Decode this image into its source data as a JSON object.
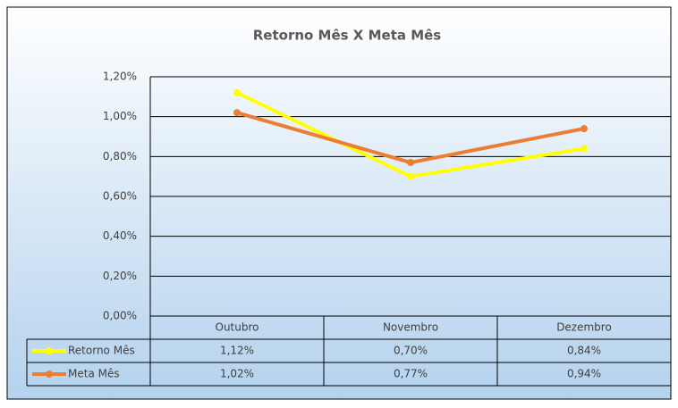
{
  "chart_data": {
    "type": "line",
    "title": "Retorno Mês X Meta Mês",
    "categories": [
      "Outubro",
      "Novembro",
      "Dezembro"
    ],
    "series": [
      {
        "name": "Retorno Mês",
        "color": "#ffff00",
        "values": [
          1.12,
          0.7,
          0.84
        ],
        "value_labels": [
          "1,12%",
          "0,70%",
          "0,84%"
        ]
      },
      {
        "name": "Meta Mês",
        "color": "#ed7d31",
        "values": [
          1.02,
          0.77,
          0.94
        ],
        "value_labels": [
          "1,02%",
          "0,77%",
          "0,94%"
        ]
      }
    ],
    "ylim": [
      0,
      1.2
    ],
    "yticks": [
      {
        "value": 0,
        "label": "0,00%"
      },
      {
        "value": 0.2,
        "label": "0,20%"
      },
      {
        "value": 0.4,
        "label": "0,40%"
      },
      {
        "value": 0.6,
        "label": "0,60%"
      },
      {
        "value": 0.8,
        "label": "0,80%"
      },
      {
        "value": 1.0,
        "label": "1,00%"
      },
      {
        "value": 1.2,
        "label": "1,20%"
      }
    ],
    "grid": true,
    "legend": "data-table"
  }
}
